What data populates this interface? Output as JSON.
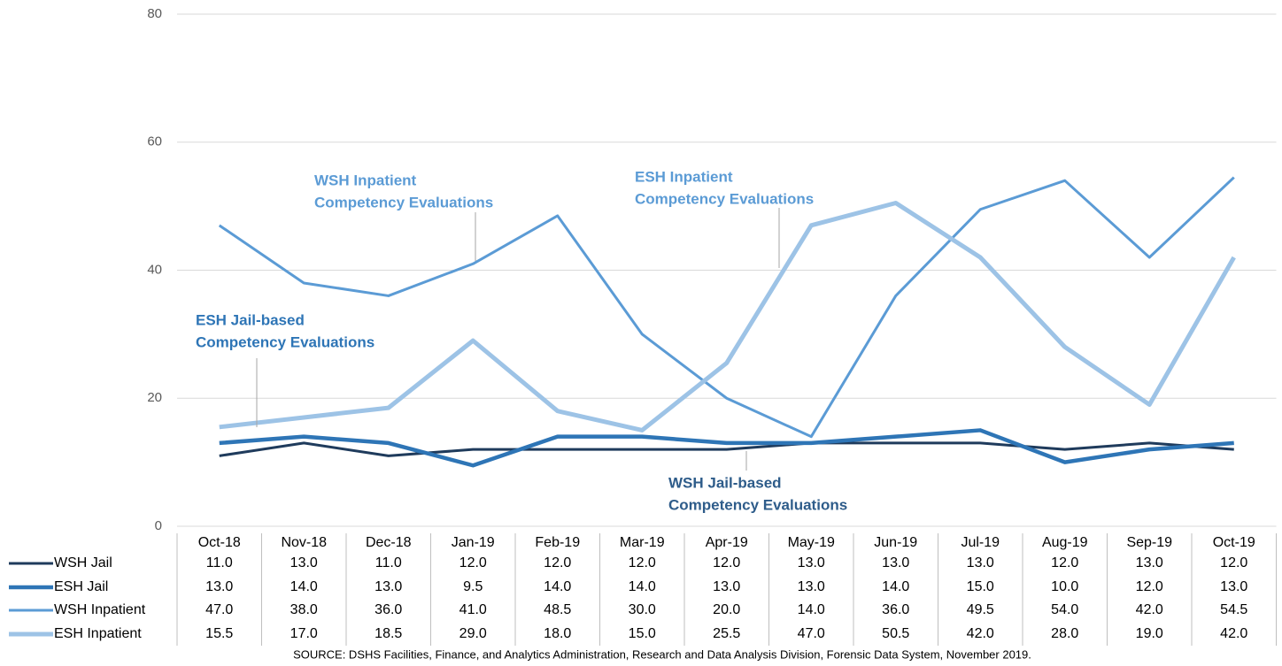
{
  "chart_data": {
    "type": "line",
    "categories": [
      "Oct-18",
      "Nov-18",
      "Dec-18",
      "Jan-19",
      "Feb-19",
      "Mar-19",
      "Apr-19",
      "May-19",
      "Jun-19",
      "Jul-19",
      "Aug-19",
      "Sep-19",
      "Oct-19"
    ],
    "series": [
      {
        "name": "WSH Jail",
        "color": "#1f3b5c",
        "width": 3,
        "values": [
          11,
          13,
          11,
          12,
          12,
          12,
          12,
          13,
          13,
          13,
          12,
          13,
          12
        ],
        "value_labels": [
          "11.0",
          "13.0",
          "11.0",
          "12.0",
          "12.0",
          "12.0",
          "12.0",
          "13.0",
          "13.0",
          "13.0",
          "12.0",
          "13.0",
          "12.0"
        ]
      },
      {
        "name": "ESH Jail",
        "color": "#2e75b6",
        "width": 4.5,
        "values": [
          13,
          14,
          13,
          9.5,
          14,
          14,
          13,
          13,
          14,
          15,
          10,
          12,
          13
        ],
        "value_labels": [
          "13.0",
          "14.0",
          "13.0",
          "9.5",
          "14.0",
          "14.0",
          "13.0",
          "13.0",
          "14.0",
          "15.0",
          "10.0",
          "12.0",
          "13.0"
        ]
      },
      {
        "name": "WSH Inpatient",
        "color": "#5b9bd5",
        "width": 3,
        "values": [
          47,
          38,
          36,
          41,
          48.5,
          30,
          20,
          14,
          36,
          49.5,
          54,
          42,
          54.5
        ],
        "value_labels": [
          "47.0",
          "38.0",
          "36.0",
          "41.0",
          "48.5",
          "30.0",
          "20.0",
          "14.0",
          "36.0",
          "49.5",
          "54.0",
          "42.0",
          "54.5"
        ]
      },
      {
        "name": "ESH Inpatient",
        "color": "#9dc3e6",
        "width": 5,
        "values": [
          15.5,
          17,
          18.5,
          29,
          18,
          15,
          25.5,
          47,
          50.5,
          42,
          28,
          19,
          42
        ],
        "value_labels": [
          "15.5",
          "17.0",
          "18.5",
          "29.0",
          "18.0",
          "15.0",
          "25.5",
          "47.0",
          "50.5",
          "42.0",
          "28.0",
          "19.0",
          "42.0"
        ]
      }
    ],
    "ylim": [
      0,
      80
    ],
    "yticks": [
      0,
      20,
      40,
      60,
      80
    ],
    "grid": true,
    "annotations": [
      {
        "lines": [
          "WSH Inpatient",
          "Competency Evaluations"
        ],
        "color": "#5b9bd5"
      },
      {
        "lines": [
          "ESH Inpatient",
          "Competency Evaluations"
        ],
        "color": "#5b9bd5"
      },
      {
        "lines": [
          "ESH Jail-based",
          "Competency Evaluations"
        ],
        "color": "#2e75b6"
      },
      {
        "lines": [
          "WSH Jail-based",
          "Competency Evaluations"
        ],
        "color": "#2e5c8a"
      }
    ],
    "source": "SOURCE: DSHS Facilities, Finance, and Analytics Administration, Research and Data Analysis Division, Forensic Data System, November 2019."
  }
}
